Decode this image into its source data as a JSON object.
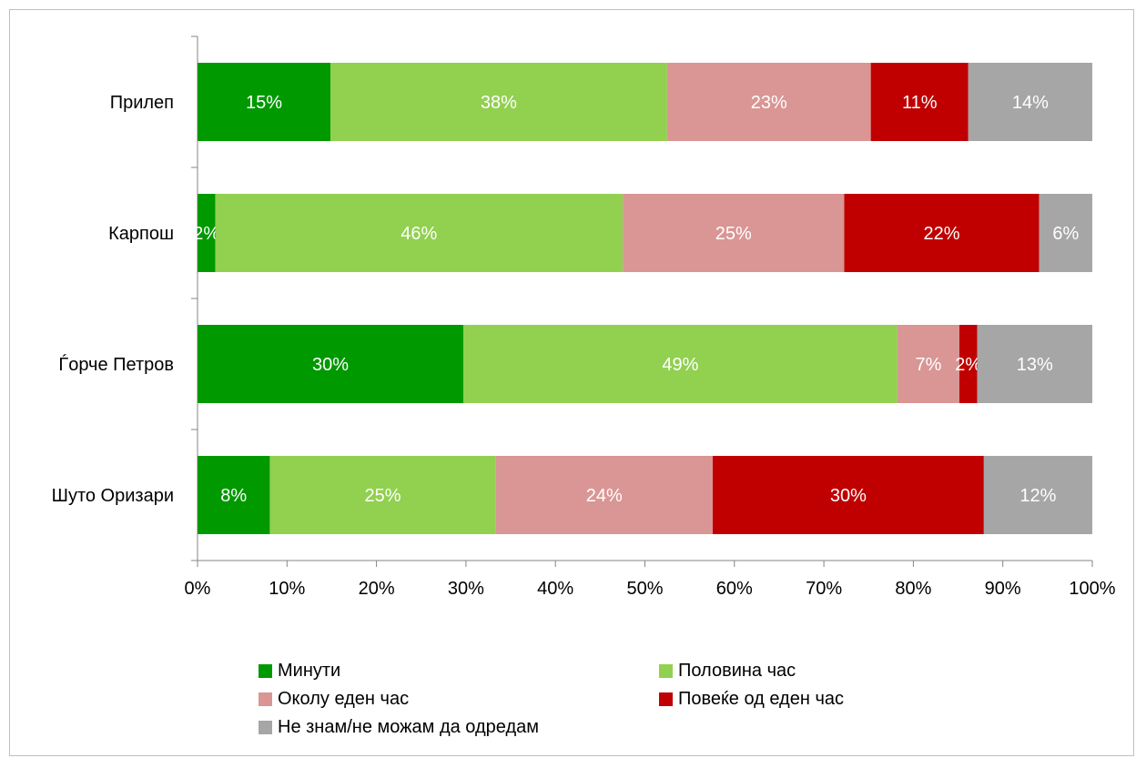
{
  "chart_data": {
    "type": "bar",
    "orientation": "horizontal",
    "stacked": "percent",
    "categories": [
      "Прилеп",
      "Карпош",
      "Ѓорче Петров",
      "Шуто Оризари"
    ],
    "series": [
      {
        "name": "Минути",
        "color": "#009900",
        "values": [
          15,
          2,
          30,
          8
        ],
        "labels": [
          "15%",
          "2%",
          "30%",
          "8%"
        ]
      },
      {
        "name": "Половина час",
        "color": "#92d050",
        "values": [
          38,
          46,
          49,
          25
        ],
        "labels": [
          "38%",
          "46%",
          "49%",
          "25%"
        ]
      },
      {
        "name": "Околу еден час",
        "color": "#d99694",
        "values": [
          23,
          25,
          7,
          24
        ],
        "labels": [
          "23%",
          "25%",
          "7%",
          "24%"
        ]
      },
      {
        "name": "Повеќе од еден час",
        "color": "#c00000",
        "values": [
          11,
          22,
          2,
          30
        ],
        "labels": [
          "11%",
          "22%",
          "2%",
          "30%"
        ]
      },
      {
        "name": "Не знам/не можам да одредам",
        "color": "#a6a6a6",
        "values": [
          14,
          6,
          13,
          12
        ],
        "labels": [
          "14%",
          "6%",
          "13%",
          "12%"
        ]
      }
    ],
    "x_ticks": [
      "0%",
      "10%",
      "20%",
      "30%",
      "40%",
      "50%",
      "60%",
      "70%",
      "80%",
      "90%",
      "100%"
    ],
    "xlim": [
      0,
      100
    ],
    "grid": false,
    "legend_position": "bottom"
  }
}
